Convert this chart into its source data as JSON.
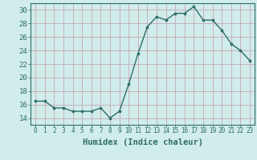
{
  "x": [
    0,
    1,
    2,
    3,
    4,
    5,
    6,
    7,
    8,
    9,
    10,
    11,
    12,
    13,
    14,
    15,
    16,
    17,
    18,
    19,
    20,
    21,
    22,
    23
  ],
  "y": [
    16.5,
    16.5,
    15.5,
    15.5,
    15.0,
    15.0,
    15.0,
    15.5,
    14.0,
    15.0,
    19.0,
    23.5,
    27.5,
    29.0,
    28.5,
    29.5,
    29.5,
    30.5,
    28.5,
    28.5,
    27.0,
    25.0,
    24.0,
    22.5
  ],
  "xlabel": "Humidex (Indice chaleur)",
  "xlim": [
    -0.5,
    23.5
  ],
  "ylim": [
    13.0,
    31.0
  ],
  "yticks": [
    14,
    16,
    18,
    20,
    22,
    24,
    26,
    28,
    30
  ],
  "xticks": [
    0,
    1,
    2,
    3,
    4,
    5,
    6,
    7,
    8,
    9,
    10,
    11,
    12,
    13,
    14,
    15,
    16,
    17,
    18,
    19,
    20,
    21,
    22,
    23
  ],
  "xtick_labels": [
    "0",
    "1",
    "2",
    "3",
    "4",
    "5",
    "6",
    "7",
    "8",
    "9",
    "10",
    "11",
    "12",
    "13",
    "14",
    "15",
    "16",
    "17",
    "18",
    "19",
    "20",
    "21",
    "22",
    "23"
  ],
  "line_color": "#2e6e65",
  "marker_color": "#2e6e65",
  "bg_color": "#d0eceb",
  "grid_color": "#c8a8b0",
  "fig_bg": "#d0eceb",
  "tick_label_color": "#2e6e65",
  "xlabel_color": "#2e6e65"
}
